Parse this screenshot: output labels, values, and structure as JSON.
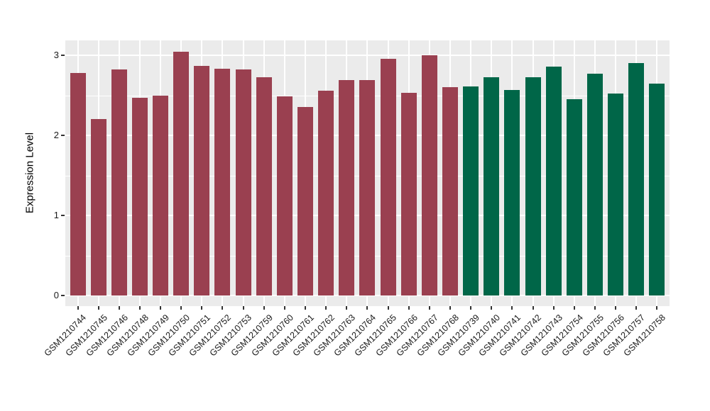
{
  "chart_data": {
    "type": "bar",
    "title": "",
    "xlabel": "",
    "ylabel": "Expression Level",
    "ylim": [
      -0.13,
      3.19
    ],
    "yticks": [
      0,
      1,
      2,
      3
    ],
    "minor_yticks": [
      0.5,
      1.5,
      2.5
    ],
    "grid": true,
    "legend_position": "none",
    "panel_background": "#EBEBEB",
    "grid_color": "#FFFFFF",
    "axis_text_color": "#1A1A1A",
    "group_colors": {
      "maroon": "#9A4050",
      "green": "#006648"
    },
    "bars": [
      {
        "label": "GSM1210744",
        "value": 2.78,
        "group": "maroon"
      },
      {
        "label": "GSM1210745",
        "value": 2.2,
        "group": "maroon"
      },
      {
        "label": "GSM1210746",
        "value": 2.82,
        "group": "maroon"
      },
      {
        "label": "GSM1210748",
        "value": 2.47,
        "group": "maroon"
      },
      {
        "label": "GSM1210749",
        "value": 2.5,
        "group": "maroon"
      },
      {
        "label": "GSM1210750",
        "value": 3.04,
        "group": "maroon"
      },
      {
        "label": "GSM1210751",
        "value": 2.87,
        "group": "maroon"
      },
      {
        "label": "GSM1210752",
        "value": 2.83,
        "group": "maroon"
      },
      {
        "label": "GSM1210753",
        "value": 2.82,
        "group": "maroon"
      },
      {
        "label": "GSM1210759",
        "value": 2.73,
        "group": "maroon"
      },
      {
        "label": "GSM1210760",
        "value": 2.49,
        "group": "maroon"
      },
      {
        "label": "GSM1210761",
        "value": 2.35,
        "group": "maroon"
      },
      {
        "label": "GSM1210762",
        "value": 2.56,
        "group": "maroon"
      },
      {
        "label": "GSM1210763",
        "value": 2.69,
        "group": "maroon"
      },
      {
        "label": "GSM1210764",
        "value": 2.69,
        "group": "maroon"
      },
      {
        "label": "GSM1210765",
        "value": 2.96,
        "group": "maroon"
      },
      {
        "label": "GSM1210766",
        "value": 2.53,
        "group": "maroon"
      },
      {
        "label": "GSM1210767",
        "value": 3.0,
        "group": "maroon"
      },
      {
        "label": "GSM1210768",
        "value": 2.6,
        "group": "maroon"
      },
      {
        "label": "GSM1210739",
        "value": 2.61,
        "group": "green"
      },
      {
        "label": "GSM1210740",
        "value": 2.73,
        "group": "green"
      },
      {
        "label": "GSM1210741",
        "value": 2.57,
        "group": "green"
      },
      {
        "label": "GSM1210742",
        "value": 2.73,
        "group": "green"
      },
      {
        "label": "GSM1210743",
        "value": 2.86,
        "group": "green"
      },
      {
        "label": "GSM1210754",
        "value": 2.45,
        "group": "green"
      },
      {
        "label": "GSM1210755",
        "value": 2.77,
        "group": "green"
      },
      {
        "label": "GSM1210756",
        "value": 2.52,
        "group": "green"
      },
      {
        "label": "GSM1210757",
        "value": 2.9,
        "group": "green"
      },
      {
        "label": "GSM1210758",
        "value": 2.65,
        "group": "green"
      }
    ]
  }
}
